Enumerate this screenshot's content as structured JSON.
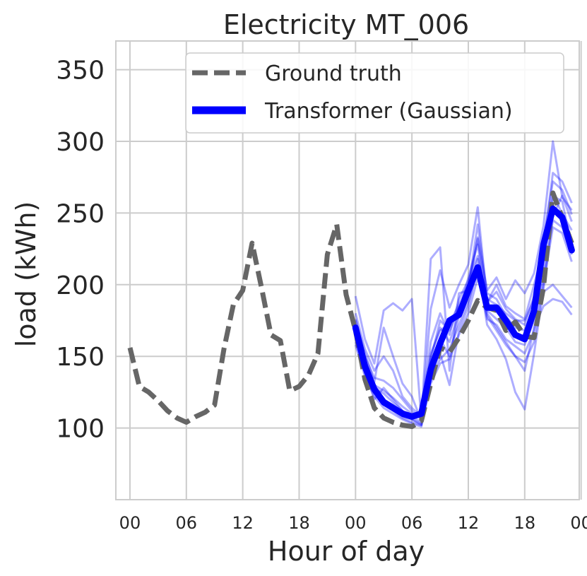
{
  "chart_data": {
    "type": "line",
    "title": "Electricity MT_006",
    "xlabel": "Hour of day",
    "ylabel": "load (kWh)",
    "ylim": [
      50,
      370
    ],
    "yticks": [
      100,
      150,
      200,
      250,
      300,
      350
    ],
    "xlim": [
      -1.5,
      47.8
    ],
    "xticks": [
      0,
      6,
      12,
      18,
      24,
      30,
      36,
      42,
      48
    ],
    "xtick_labels": [
      "00",
      "06",
      "12",
      "18",
      "00",
      "06",
      "12",
      "18",
      "00"
    ],
    "grid": true,
    "legend_position": "top-right",
    "legend": [
      "Ground truth",
      "Transformer (Gaussian)"
    ],
    "colors": {
      "ground_truth": "#666666",
      "forecast": "#0000ff",
      "samples": "#0000ff",
      "grid": "#cccccc",
      "text": "#262626"
    },
    "series": [
      {
        "name": "Ground truth",
        "x": [
          0,
          1,
          2,
          3,
          4,
          5,
          6,
          7,
          8,
          9,
          10,
          11,
          12,
          13,
          14,
          15,
          16,
          17,
          18,
          19,
          20,
          21,
          22,
          23,
          24,
          25,
          26,
          27,
          28,
          29,
          30,
          31,
          32,
          33,
          34,
          35,
          36,
          37,
          38,
          39,
          40,
          41,
          42,
          43,
          44,
          45,
          46,
          47
        ],
        "values": [
          156,
          129,
          125,
          119,
          112,
          107,
          104,
          108,
          111,
          116,
          155,
          186,
          196,
          229,
          198,
          165,
          161,
          126,
          129,
          137,
          152,
          221,
          242,
          193,
          168,
          134,
          114,
          107,
          104,
          102,
          101,
          105,
          131,
          156,
          153,
          163,
          175,
          189,
          184,
          182,
          168,
          174,
          164,
          163,
          198,
          264,
          247,
          229
        ]
      },
      {
        "name": "Transformer (Gaussian)",
        "x": [
          24,
          25,
          26,
          27,
          28,
          29,
          30,
          31,
          32,
          33,
          34,
          35,
          36,
          37,
          38,
          39,
          40,
          41,
          42,
          43,
          44,
          45,
          46,
          47
        ],
        "values": [
          170,
          143,
          127,
          118,
          114,
          110,
          108,
          110,
          141,
          159,
          175,
          179,
          196,
          212,
          184,
          184,
          175,
          165,
          162,
          182,
          228,
          253,
          247,
          224
        ]
      }
    ],
    "samples": [
      {
        "x": [
          24,
          25,
          26,
          27,
          28,
          29,
          30,
          31,
          32,
          33,
          34,
          35,
          36,
          37,
          38,
          39,
          40,
          41,
          42,
          43,
          44,
          45,
          46,
          47
        ],
        "values": [
          192,
          162,
          145,
          182,
          187,
          182,
          190,
          106,
          218,
          226,
          140,
          194,
          196,
          233,
          196,
          205,
          190,
          203,
          194,
          208,
          241,
          300,
          261,
          252
        ]
      },
      {
        "x": [
          24,
          25,
          26,
          27,
          28,
          29,
          30,
          31,
          32,
          33,
          34,
          35,
          36,
          37,
          38,
          39,
          40,
          41,
          42,
          43,
          44,
          45,
          46,
          47
        ],
        "values": [
          176,
          152,
          132,
          170,
          150,
          131,
          122,
          105,
          183,
          210,
          184,
          200,
          214,
          254,
          188,
          200,
          185,
          180,
          176,
          200,
          226,
          278,
          272,
          257
        ]
      },
      {
        "x": [
          24,
          25,
          26,
          27,
          28,
          29,
          30,
          31,
          32,
          33,
          34,
          35,
          36,
          37,
          38,
          39,
          40,
          41,
          42,
          43,
          44,
          45,
          46,
          47
        ],
        "values": [
          165,
          140,
          120,
          128,
          120,
          112,
          108,
          104,
          150,
          170,
          160,
          180,
          205,
          228,
          182,
          176,
          170,
          160,
          158,
          175,
          210,
          262,
          258,
          226
        ]
      },
      {
        "x": [
          24,
          25,
          26,
          27,
          28,
          29,
          30,
          31,
          32,
          33,
          34,
          35,
          36,
          37,
          38,
          39,
          40,
          41,
          42,
          43,
          44,
          45,
          46,
          47
        ],
        "values": [
          160,
          138,
          128,
          120,
          116,
          108,
          106,
          103,
          138,
          152,
          130,
          168,
          185,
          213,
          172,
          162,
          148,
          125,
          113,
          152,
          197,
          248,
          262,
          244
        ]
      },
      {
        "x": [
          24,
          25,
          26,
          27,
          28,
          29,
          30,
          31,
          32,
          33,
          34,
          35,
          36,
          37,
          38,
          39,
          40,
          41,
          42,
          43,
          44,
          45,
          46,
          47
        ],
        "values": [
          180,
          155,
          140,
          150,
          140,
          122,
          114,
          108,
          160,
          180,
          165,
          190,
          203,
          220,
          190,
          186,
          180,
          175,
          175,
          190,
          195,
          200,
          192,
          184
        ]
      },
      {
        "x": [
          24,
          25,
          26,
          27,
          28,
          29,
          30,
          31,
          32,
          33,
          34,
          35,
          36,
          37,
          38,
          39,
          40,
          41,
          42,
          43,
          44,
          45,
          46,
          47
        ],
        "values": [
          168,
          145,
          128,
          124,
          118,
          112,
          106,
          102,
          145,
          162,
          150,
          178,
          195,
          218,
          180,
          170,
          160,
          150,
          140,
          170,
          185,
          190,
          188,
          179
        ]
      },
      {
        "x": [
          24,
          25,
          26,
          27,
          28,
          29,
          30,
          31,
          32,
          33,
          34,
          35,
          36,
          37,
          38,
          39,
          40,
          41,
          42,
          43,
          44,
          45,
          46,
          47
        ],
        "values": [
          175,
          150,
          135,
          133,
          128,
          120,
          112,
          106,
          152,
          168,
          173,
          186,
          200,
          232,
          188,
          195,
          183,
          176,
          172,
          192,
          218,
          264,
          249,
          238
        ]
      },
      {
        "x": [
          24,
          25,
          26,
          27,
          28,
          29,
          30,
          31,
          32,
          33,
          34,
          35,
          36,
          37,
          38,
          39,
          40,
          41,
          42,
          43,
          44,
          45,
          46,
          47
        ],
        "values": [
          162,
          142,
          125,
          116,
          112,
          107,
          104,
          102,
          135,
          148,
          155,
          172,
          188,
          210,
          176,
          172,
          162,
          157,
          152,
          168,
          205,
          245,
          240,
          221
        ]
      },
      {
        "x": [
          24,
          25,
          26,
          27,
          28,
          29,
          30,
          31,
          32,
          33,
          34,
          35,
          36,
          37,
          38,
          39,
          40,
          41,
          42,
          43,
          44,
          45,
          46,
          47
        ],
        "values": [
          172,
          148,
          130,
          126,
          121,
          115,
          110,
          107,
          148,
          175,
          168,
          184,
          198,
          242,
          194,
          190,
          178,
          170,
          168,
          185,
          232,
          272,
          266,
          249
        ]
      },
      {
        "x": [
          24,
          25,
          26,
          27,
          28,
          29,
          30,
          31,
          32,
          33,
          34,
          35,
          36,
          37,
          38,
          39,
          40,
          41,
          42,
          43,
          44,
          45,
          46,
          47
        ],
        "values": [
          158,
          136,
          122,
          114,
          110,
          106,
          103,
          101,
          131,
          145,
          148,
          165,
          180,
          205,
          178,
          168,
          158,
          150,
          146,
          160,
          200,
          240,
          236,
          216
        ]
      }
    ]
  }
}
